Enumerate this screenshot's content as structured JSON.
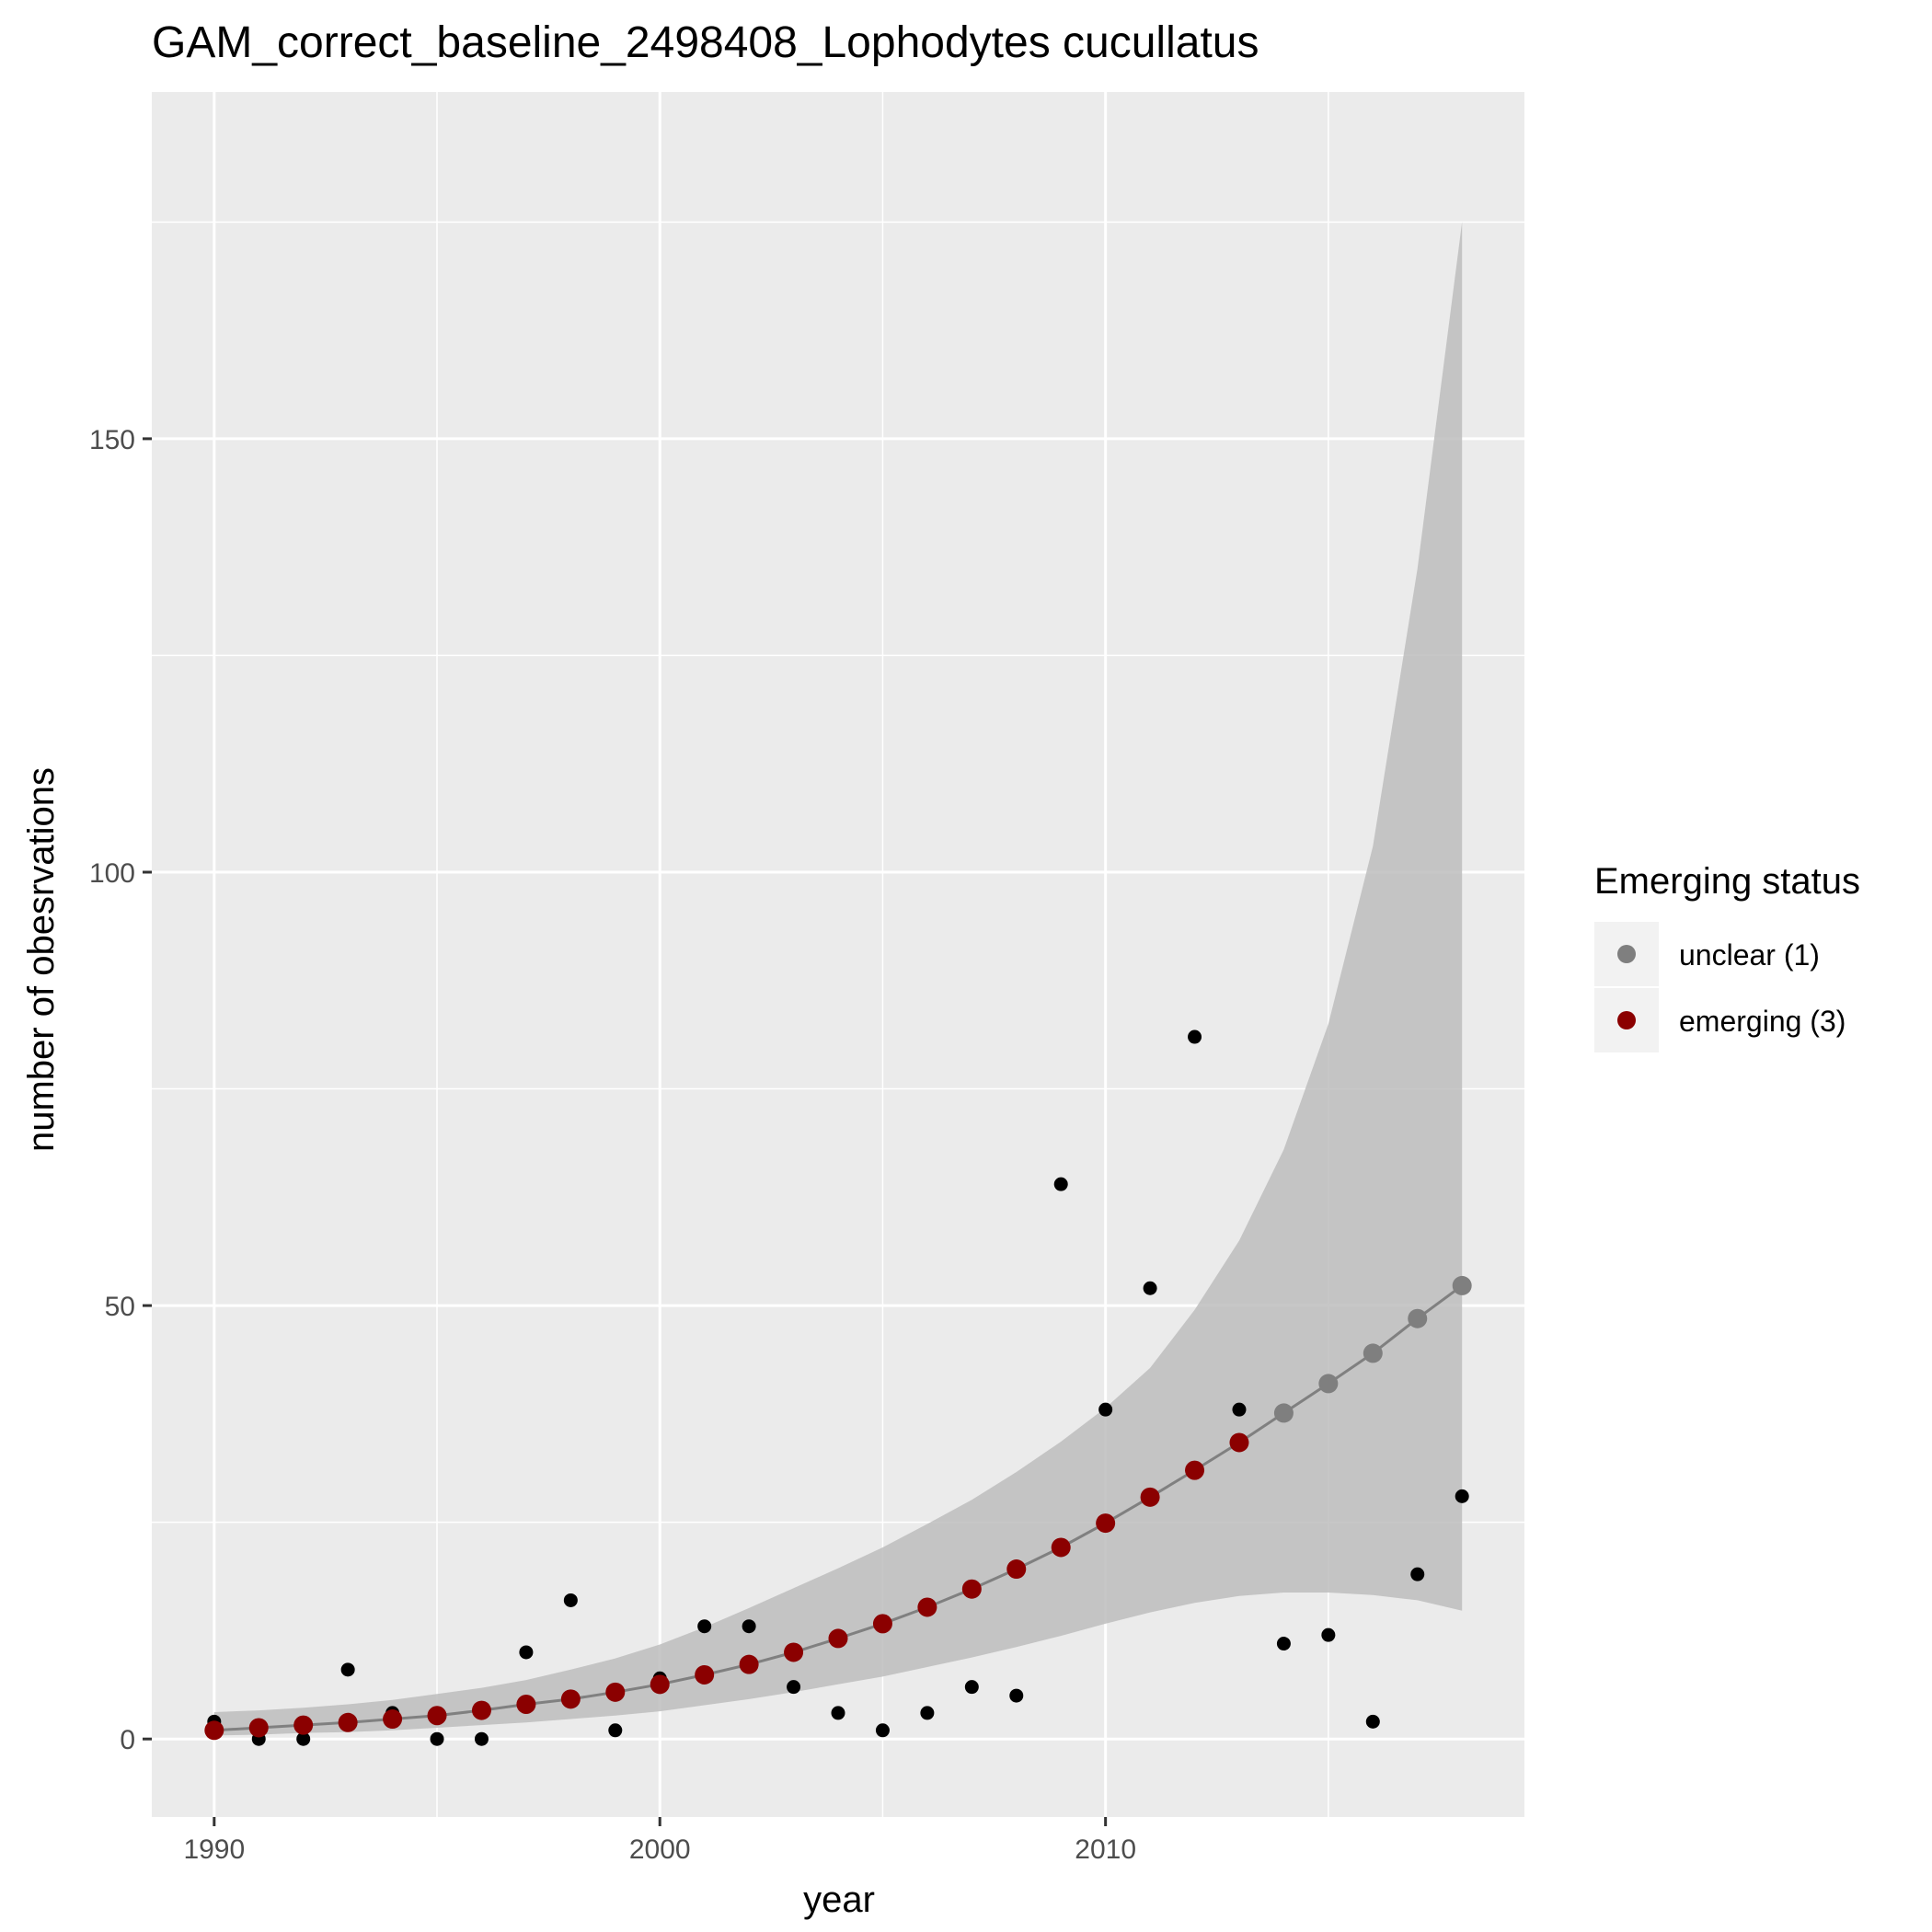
{
  "chart_data": {
    "type": "scatter",
    "title": "GAM_correct_baseline_2498408_Lophodytes cucullatus",
    "xlabel": "year",
    "ylabel": "number of obesrvations",
    "xlim": [
      1988.6,
      2019.4
    ],
    "ylim": [
      -9,
      190
    ],
    "x_ticks": [
      1990,
      2000,
      2010
    ],
    "y_ticks": [
      0,
      50,
      100,
      150
    ],
    "grid": true,
    "legend_placement": "right",
    "legend": {
      "title": "Emerging status",
      "entries": [
        {
          "label": "unclear (1)",
          "color": "#7f7f7f"
        },
        {
          "label": "emerging (3)",
          "color": "#8b0000"
        }
      ]
    },
    "colors": {
      "panel": "#ebebeb",
      "grid": "#ffffff",
      "ribbon": "#bdbdbd",
      "line": "#808080",
      "observed": "#000000",
      "unclear": "#7f7f7f",
      "emerging": "#8b0000"
    },
    "observed": {
      "x": [
        1990,
        1991,
        1992,
        1993,
        1994,
        1995,
        1996,
        1997,
        1998,
        1999,
        2000,
        2001,
        2002,
        2003,
        2004,
        2005,
        2006,
        2007,
        2008,
        2009,
        2010,
        2011,
        2012,
        2013,
        2014,
        2015,
        2016,
        2017,
        2018
      ],
      "y": [
        2,
        0,
        0,
        8,
        3,
        0,
        0,
        10,
        16,
        1,
        7,
        13,
        13,
        6,
        3,
        1,
        3,
        6,
        5,
        64,
        38,
        52,
        81,
        38,
        11,
        12,
        2,
        19,
        28
      ]
    },
    "fitted": {
      "x": [
        1990,
        1991,
        1992,
        1993,
        1994,
        1995,
        1996,
        1997,
        1998,
        1999,
        2000,
        2001,
        2002,
        2003,
        2004,
        2005,
        2006,
        2007,
        2008,
        2009,
        2010,
        2011,
        2012,
        2013,
        2014,
        2015,
        2016,
        2017,
        2018
      ],
      "y": [
        1.0,
        1.3,
        1.6,
        1.9,
        2.3,
        2.7,
        3.3,
        4.0,
        4.6,
        5.4,
        6.3,
        7.4,
        8.6,
        10.0,
        11.6,
        13.3,
        15.2,
        17.3,
        19.6,
        22.1,
        24.9,
        27.9,
        31.0,
        34.2,
        37.6,
        41.0,
        44.5,
        48.5,
        52.3
      ],
      "lower": [
        0.4,
        0.5,
        0.7,
        0.8,
        1.0,
        1.3,
        1.6,
        1.9,
        2.3,
        2.7,
        3.2,
        3.9,
        4.6,
        5.4,
        6.3,
        7.2,
        8.3,
        9.4,
        10.6,
        11.9,
        13.3,
        14.6,
        15.7,
        16.5,
        16.9,
        16.9,
        16.6,
        16.0,
        14.8
      ],
      "upper": [
        3.1,
        3.3,
        3.6,
        4.0,
        4.5,
        5.2,
        5.9,
        6.8,
        8.0,
        9.3,
        10.9,
        12.9,
        15.1,
        17.4,
        19.7,
        22.1,
        24.8,
        27.6,
        30.8,
        34.3,
        38.2,
        42.8,
        49.5,
        57.5,
        68.0,
        82.5,
        103.0,
        135.0,
        175.0
      ],
      "status": [
        "emerging",
        "emerging",
        "emerging",
        "emerging",
        "emerging",
        "emerging",
        "emerging",
        "emerging",
        "emerging",
        "emerging",
        "emerging",
        "emerging",
        "emerging",
        "emerging",
        "emerging",
        "emerging",
        "emerging",
        "emerging",
        "emerging",
        "emerging",
        "emerging",
        "emerging",
        "emerging",
        "emerging",
        "unclear",
        "unclear",
        "unclear",
        "unclear",
        "unclear"
      ]
    }
  }
}
